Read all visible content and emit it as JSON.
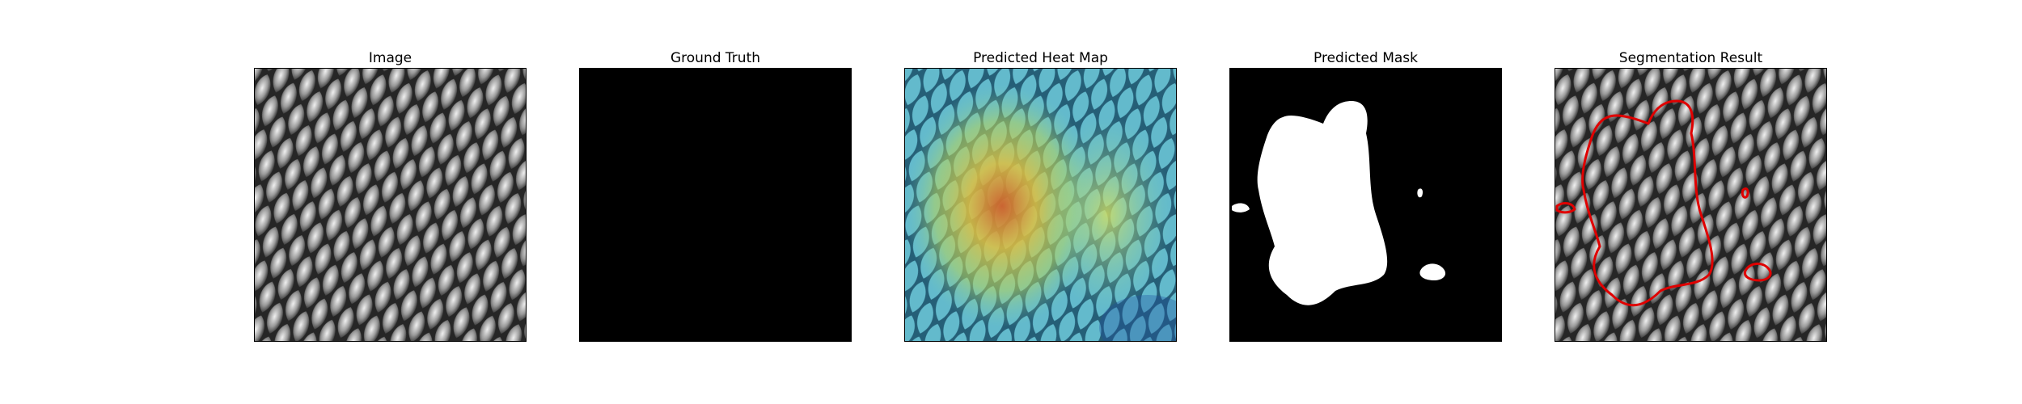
{
  "figure": {
    "panels": [
      {
        "title": "Image"
      },
      {
        "title": "Ground Truth"
      },
      {
        "title": "Predicted Heat Map"
      },
      {
        "title": "Predicted Mask"
      },
      {
        "title": "Segmentation Result"
      }
    ]
  },
  "colors": {
    "background": "#ffffff",
    "frame": "#000000",
    "mask_foreground": "#ffffff",
    "mask_background": "#000000",
    "contour": "#e00000",
    "texture_light": "#e6e6e6",
    "texture_dark": "#1e1e1e"
  }
}
